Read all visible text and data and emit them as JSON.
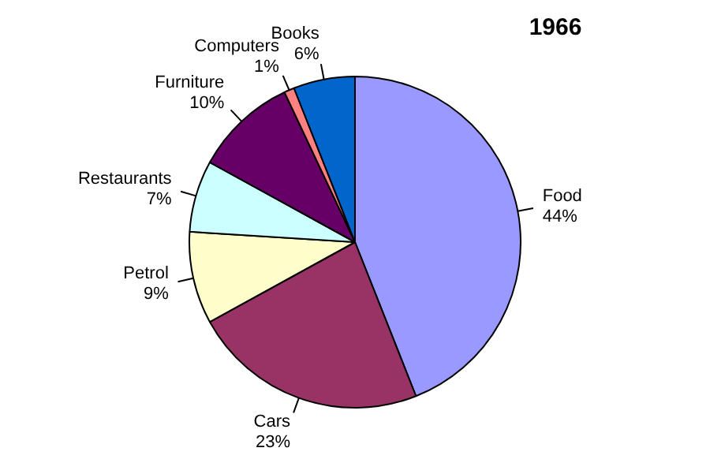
{
  "chart_data": {
    "type": "pie",
    "title": "1966",
    "categories": [
      "Food",
      "Cars",
      "Petrol",
      "Restaurants",
      "Furniture",
      "Computers",
      "Books"
    ],
    "values": [
      44,
      23,
      9,
      7,
      10,
      1,
      6
    ],
    "value_labels": [
      "44%",
      "23%",
      "9%",
      "7%",
      "10%",
      "1%",
      "6%"
    ],
    "colors": [
      "#9999ff",
      "#993366",
      "#ffffcc",
      "#ccffff",
      "#660066",
      "#ff8080",
      "#0066cc"
    ],
    "legend": false
  }
}
